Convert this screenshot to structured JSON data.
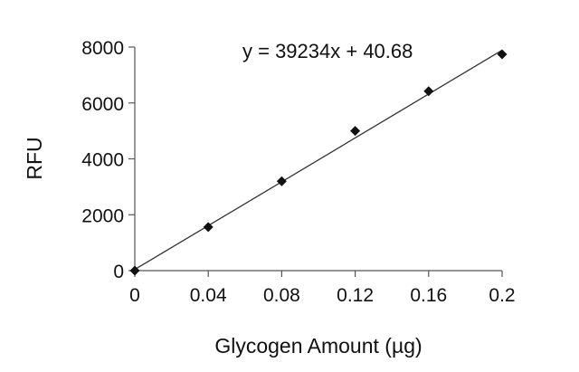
{
  "chart_data": {
    "type": "scatter",
    "title": "",
    "xlabel": "Glycogen Amount (µg)",
    "ylabel": "RFU",
    "xlim": [
      0,
      0.2
    ],
    "ylim": [
      0,
      8000
    ],
    "x_ticks": [
      0,
      0.04,
      0.08,
      0.12,
      0.16,
      0.2
    ],
    "x_tick_labels": [
      "0",
      "0.04",
      "0.08",
      "0.12",
      "0.16",
      "0.2"
    ],
    "y_ticks": [
      0,
      2000,
      4000,
      6000,
      8000
    ],
    "y_tick_labels": [
      "0",
      "2000",
      "4000",
      "6000",
      "8000"
    ],
    "grid": false,
    "legend": "none",
    "marker": "diamond",
    "marker_color": "#111111",
    "line_color": "#333333",
    "series": [
      {
        "x": [
          0,
          0.04,
          0.08,
          0.12,
          0.16,
          0.2
        ],
        "y": [
          0,
          1560,
          3200,
          5000,
          6420,
          7740
        ]
      }
    ],
    "trendline": {
      "slope": 39234,
      "intercept": 40.68,
      "label": "y = 39234x + 40.68"
    }
  }
}
